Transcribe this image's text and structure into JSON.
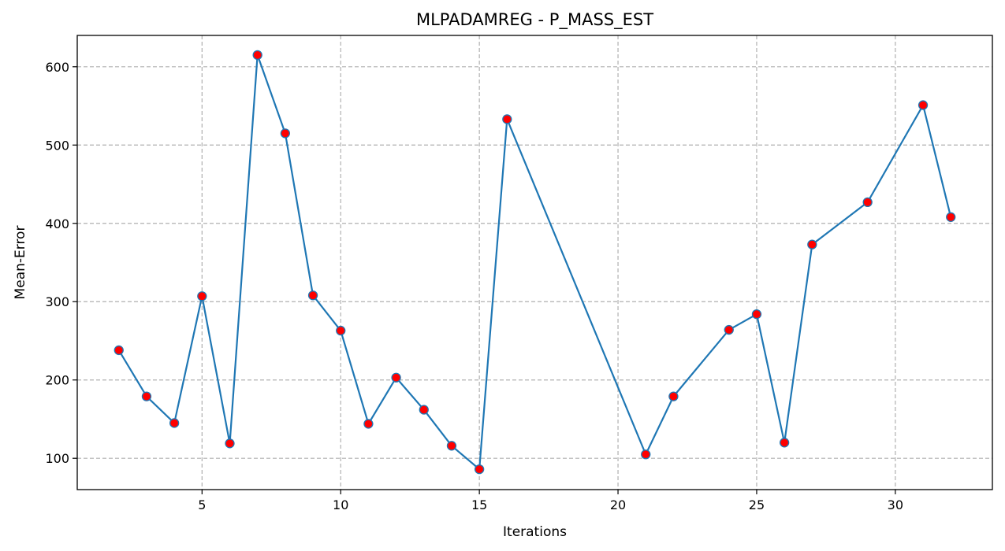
{
  "chart_data": {
    "type": "line",
    "title": "MLPADAMREG - P_MASS_EST",
    "xlabel": "Iterations",
    "ylabel": "Mean-Error",
    "xlim": [
      0.5,
      33.5
    ],
    "ylim": [
      60,
      640
    ],
    "xticks": [
      5,
      10,
      15,
      20,
      25,
      30
    ],
    "yticks": [
      100,
      200,
      300,
      400,
      500,
      600
    ],
    "grid": true,
    "colors": {
      "line": "#1f77b4",
      "marker_fill": "#ff0000",
      "marker_edge": "#1f77b4",
      "grid": "#b0b0b0"
    },
    "series": [
      {
        "x": [
          2,
          3,
          4,
          5,
          6,
          7,
          8,
          9,
          10,
          11,
          12,
          13,
          14,
          15,
          16,
          21,
          22,
          24,
          25,
          26,
          27,
          29,
          31,
          32
        ],
        "y": [
          238,
          179,
          145,
          307,
          119,
          615,
          515,
          308,
          263,
          144,
          203,
          162,
          116,
          86,
          533,
          105,
          179,
          264,
          284,
          120,
          373,
          427,
          551,
          408
        ]
      }
    ]
  }
}
